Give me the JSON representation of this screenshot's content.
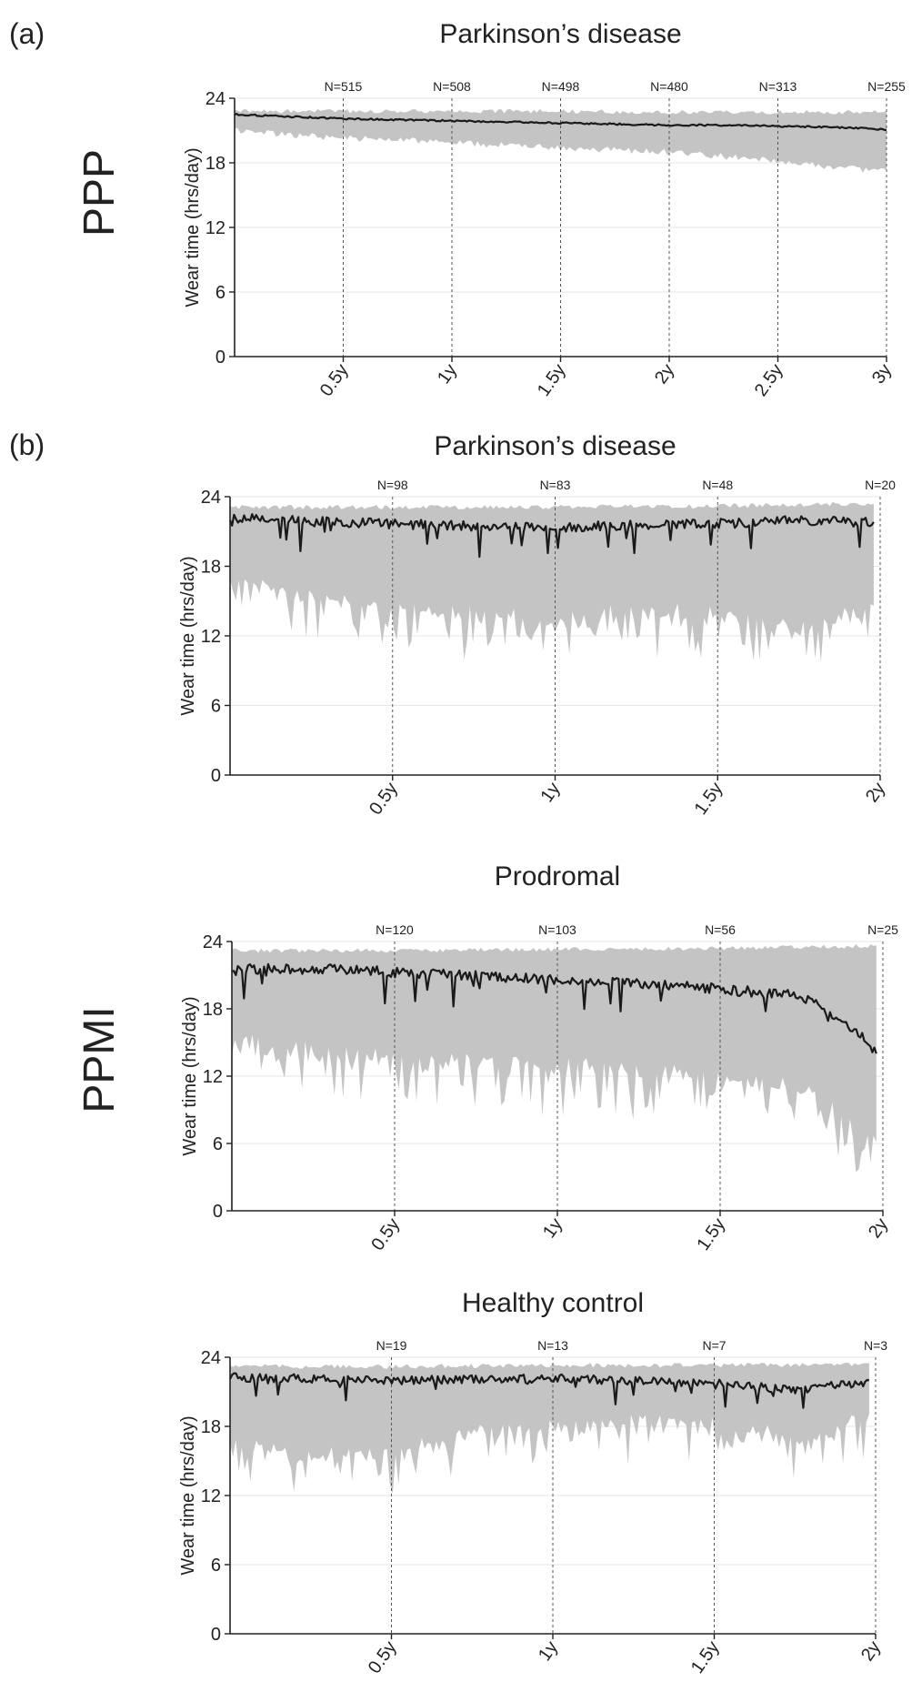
{
  "panel_labels": [
    "(a)",
    "(b)"
  ],
  "cohort_labels": [
    "PPP",
    "PPMI"
  ],
  "colors": {
    "mean_line": "#1a1a1a",
    "band": "#c4c4c4",
    "vline": "#555555",
    "grid": "#e6e6e6"
  },
  "chart_data": [
    {
      "type": "line",
      "cohort": "PPP",
      "title": "Parkinson’s disease",
      "xlabel": "",
      "ylabel": "Wear time (hrs/day)",
      "ylim": [
        0,
        24
      ],
      "yticks": [
        "0",
        "6",
        "12",
        "18",
        "24"
      ],
      "yticks_values": [
        0,
        6,
        12,
        18,
        24
      ],
      "xlim": [
        0,
        3
      ],
      "xticks": [
        "0.5y",
        "1y",
        "1.5y",
        "2y",
        "2.5y",
        "3y"
      ],
      "xticks_values": [
        0.5,
        1,
        1.5,
        2,
        2.5,
        3
      ],
      "n_labels": [
        "N=515",
        "N=508",
        "N=498",
        "N=480",
        "N=313",
        "N=255"
      ],
      "mean": {
        "x": [
          0,
          0.25,
          0.5,
          0.75,
          1,
          1.25,
          1.5,
          1.75,
          2,
          2.25,
          2.5,
          2.75,
          3
        ],
        "y": [
          22.5,
          22.3,
          22.1,
          22.0,
          21.9,
          21.8,
          21.7,
          21.6,
          21.5,
          21.5,
          21.4,
          21.3,
          21.1
        ]
      },
      "band_upper": {
        "x": [
          0,
          0.5,
          1,
          1.5,
          2,
          2.5,
          3
        ],
        "y": [
          23.0,
          23.0,
          23.0,
          23.0,
          22.9,
          22.9,
          22.9
        ]
      },
      "band_lower": {
        "x": [
          0,
          0.25,
          0.5,
          0.75,
          1,
          1.25,
          1.5,
          1.75,
          2,
          2.25,
          2.5,
          2.75,
          3
        ],
        "y": [
          21.0,
          20.6,
          20.3,
          20.1,
          19.9,
          19.6,
          19.4,
          19.2,
          19.0,
          18.6,
          18.2,
          17.6,
          17.2
        ]
      },
      "noise": 0.15,
      "seed": 11
    },
    {
      "type": "line",
      "cohort": "PPMI",
      "title": "Parkinson’s disease",
      "xlabel": "",
      "ylabel": "Wear time (hrs/day)",
      "ylim": [
        0,
        24
      ],
      "yticks": [
        "0",
        "6",
        "12",
        "18",
        "24"
      ],
      "yticks_values": [
        0,
        6,
        12,
        18,
        24
      ],
      "xlim": [
        0,
        2
      ],
      "xticks": [
        "0.5y",
        "1y",
        "1.5y",
        "2y"
      ],
      "xticks_values": [
        0.5,
        1,
        1.5,
        2
      ],
      "n_labels": [
        "N=98",
        "N=83",
        "N=48",
        "N=20"
      ],
      "mean": {
        "x": [
          0,
          0.25,
          0.5,
          0.75,
          1,
          1.25,
          1.5,
          1.75,
          1.98
        ],
        "y": [
          22.2,
          21.9,
          21.7,
          21.5,
          21.4,
          21.6,
          21.7,
          22.0,
          21.8
        ]
      },
      "band_upper": {
        "x": [
          0,
          0.5,
          1,
          1.5,
          1.98
        ],
        "y": [
          23.3,
          23.3,
          23.3,
          23.4,
          23.6
        ]
      },
      "band_lower": {
        "x": [
          0,
          0.25,
          0.5,
          0.75,
          1,
          1.25,
          1.5,
          1.75,
          1.98
        ],
        "y": [
          17.0,
          15.5,
          14.5,
          14.0,
          13.5,
          14.5,
          14.0,
          13.0,
          14.5
        ]
      },
      "noise": 0.9,
      "seed": 23
    },
    {
      "type": "line",
      "cohort": "PPMI",
      "title": "Prodromal",
      "xlabel": "",
      "ylabel": "Wear time (hrs/day)",
      "ylim": [
        0,
        24
      ],
      "yticks": [
        "0",
        "6",
        "12",
        "18",
        "24"
      ],
      "yticks_values": [
        0,
        6,
        12,
        18,
        24
      ],
      "xlim": [
        0,
        2
      ],
      "xticks": [
        "0.5y",
        "1y",
        "1.5y",
        "2y"
      ],
      "xticks_values": [
        0.5,
        1,
        1.5,
        2
      ],
      "n_labels": [
        "N=120",
        "N=103",
        "N=56",
        "N=25"
      ],
      "mean": {
        "x": [
          0,
          0.25,
          0.5,
          0.75,
          1,
          1.25,
          1.5,
          1.75,
          1.85,
          1.98
        ],
        "y": [
          21.6,
          21.6,
          21.3,
          21.0,
          20.6,
          20.3,
          19.8,
          19.2,
          17.5,
          14.5
        ]
      },
      "band_upper": {
        "x": [
          0,
          0.5,
          1,
          1.5,
          1.98
        ],
        "y": [
          23.4,
          23.4,
          23.5,
          23.6,
          23.8
        ]
      },
      "band_lower": {
        "x": [
          0,
          0.25,
          0.5,
          0.75,
          1,
          1.25,
          1.5,
          1.75,
          1.9,
          1.98
        ],
        "y": [
          15.5,
          14.5,
          13.8,
          13.5,
          13.2,
          12.8,
          12.2,
          11.0,
          8.0,
          6.5
        ]
      },
      "noise": 1.0,
      "seed": 37
    },
    {
      "type": "line",
      "cohort": "PPMI",
      "title": "Healthy control",
      "xlabel": "",
      "ylabel": "Wear time (hrs/day)",
      "ylim": [
        0,
        24
      ],
      "yticks": [
        "0",
        "6",
        "12",
        "18",
        "24"
      ],
      "yticks_values": [
        0,
        6,
        12,
        18,
        24
      ],
      "xlim": [
        0,
        2
      ],
      "xticks": [
        "0.5y",
        "1y",
        "1.5y",
        "2y"
      ],
      "xticks_values": [
        0.5,
        1,
        1.5,
        2
      ],
      "n_labels": [
        "N=19",
        "N=13",
        "N=7",
        "N=3"
      ],
      "mean": {
        "x": [
          0,
          0.25,
          0.5,
          0.75,
          1,
          1.25,
          1.5,
          1.75,
          1.98
        ],
        "y": [
          22.3,
          22.1,
          22.0,
          22.1,
          22.2,
          22.0,
          21.8,
          21.2,
          21.9
        ]
      },
      "band_upper": {
        "x": [
          0,
          0.5,
          1,
          1.5,
          1.98
        ],
        "y": [
          23.4,
          23.4,
          23.5,
          23.5,
          23.6
        ]
      },
      "band_lower": {
        "x": [
          0,
          0.25,
          0.5,
          0.75,
          1,
          1.25,
          1.5,
          1.75,
          1.98
        ],
        "y": [
          17.0,
          15.5,
          16.0,
          17.5,
          18.0,
          18.5,
          18.5,
          17.0,
          19.0
        ]
      },
      "noise": 0.8,
      "seed": 53
    }
  ]
}
